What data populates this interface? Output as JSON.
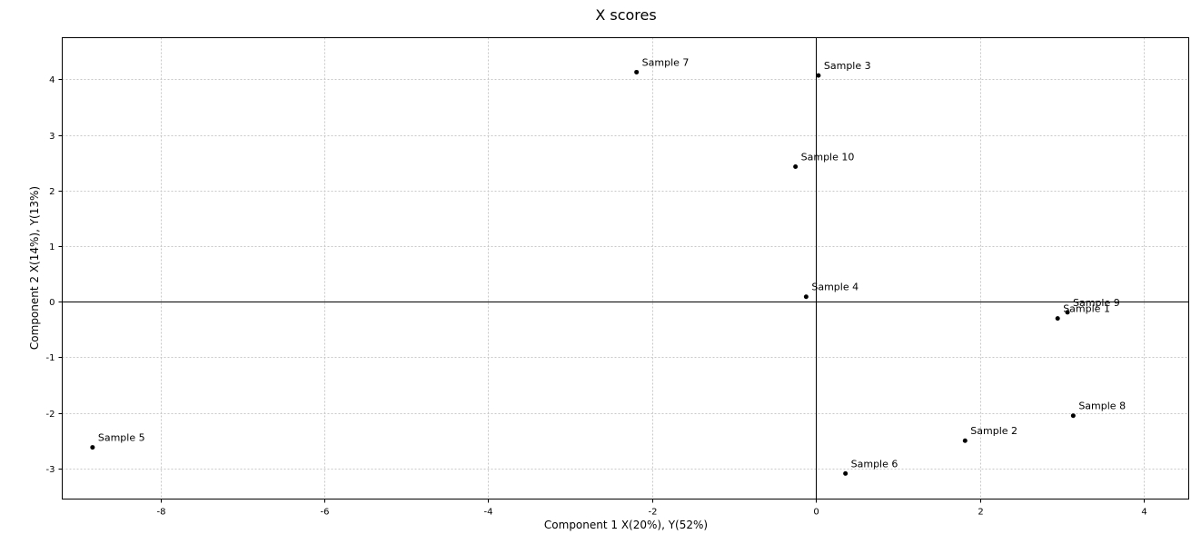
{
  "chart_data": {
    "type": "scatter",
    "title": "X scores",
    "xlabel": "Component 1 X(20%), Y(52%)",
    "ylabel": "Component 2 X(14%), Y(13%)",
    "xlim": [
      -9.2,
      4.55
    ],
    "ylim": [
      -3.55,
      4.75
    ],
    "xticks": [
      -8,
      -6,
      -4,
      -2,
      0,
      2,
      4
    ],
    "yticks": [
      -3,
      -2,
      -1,
      0,
      1,
      2,
      3,
      4
    ],
    "grid": true,
    "zero_lines": true,
    "points": [
      {
        "label": "Sample 1",
        "x": 2.95,
        "y": -0.3
      },
      {
        "label": "Sample 2",
        "x": 1.82,
        "y": -2.5
      },
      {
        "label": "Sample 3",
        "x": 0.03,
        "y": 4.07
      },
      {
        "label": "Sample 4",
        "x": -0.12,
        "y": 0.09
      },
      {
        "label": "Sample 5",
        "x": -8.83,
        "y": -2.62
      },
      {
        "label": "Sample 6",
        "x": 0.36,
        "y": -3.09
      },
      {
        "label": "Sample 7",
        "x": -2.19,
        "y": 4.13
      },
      {
        "label": "Sample 8",
        "x": 3.14,
        "y": -2.05
      },
      {
        "label": "Sample 9",
        "x": 3.07,
        "y": -0.19
      },
      {
        "label": "Sample 10",
        "x": -0.25,
        "y": 2.43
      }
    ]
  }
}
